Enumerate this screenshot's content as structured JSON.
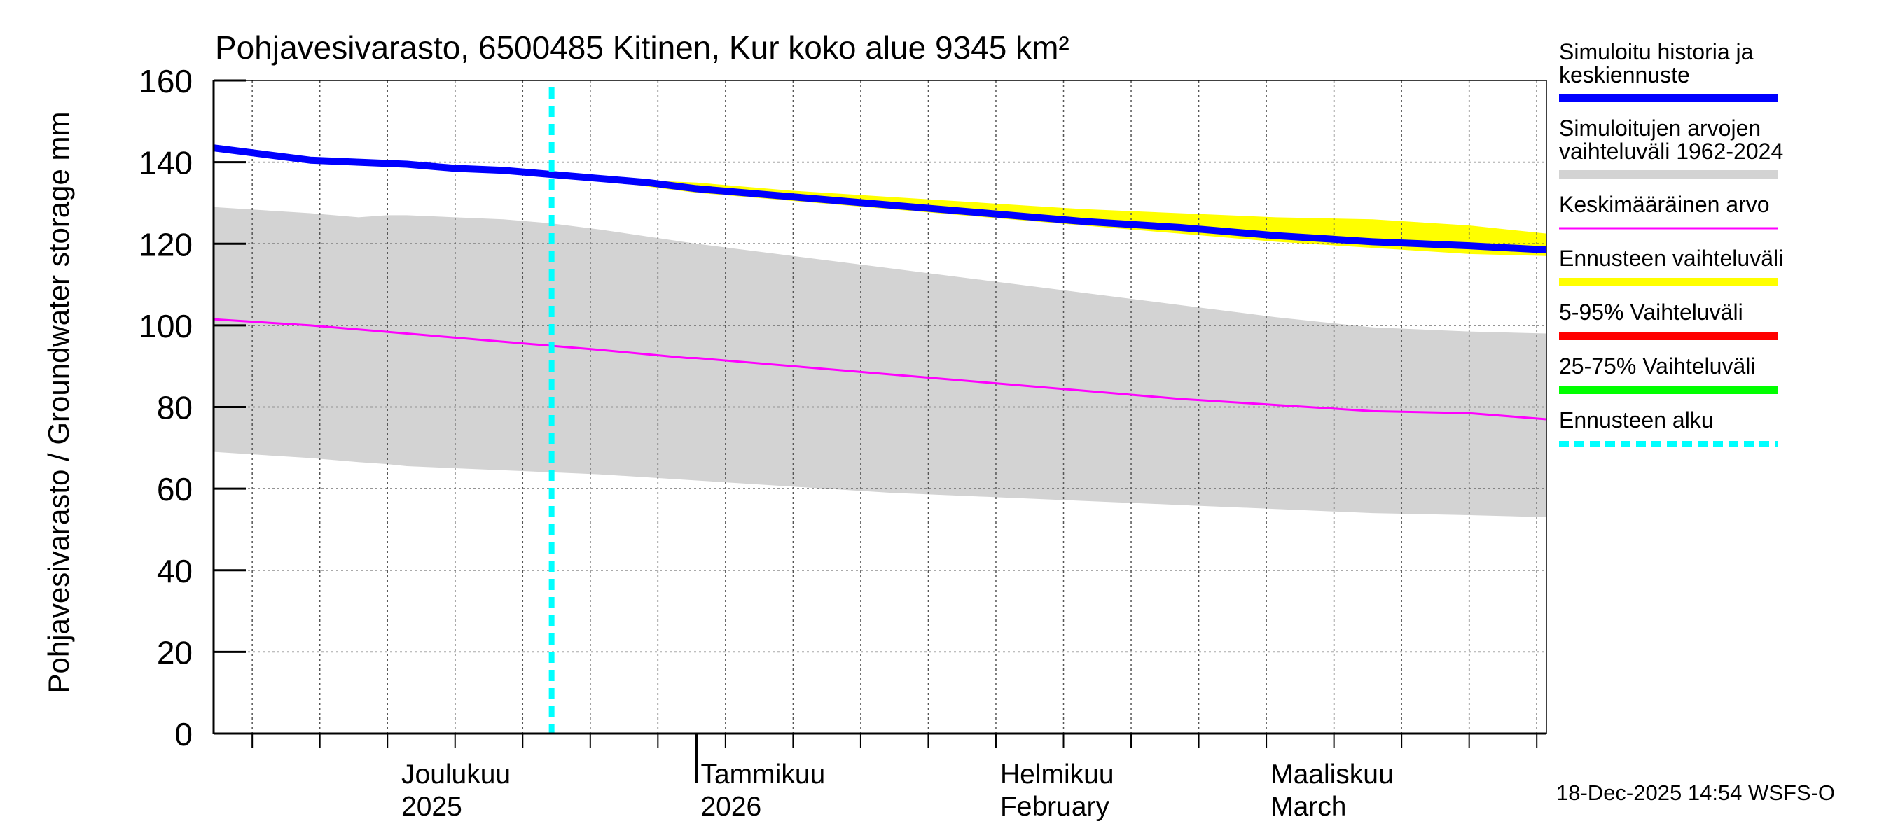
{
  "chart_data": {
    "type": "area",
    "title": "Pohjavesivarasto, 6500485 Kitinen, Kur koko alue 9345 km²",
    "ylabel": "Pohjavesivarasto / Groundwater storage   mm",
    "xlabel": "",
    "ylim": [
      0,
      160
    ],
    "yticks": [
      0,
      20,
      40,
      60,
      80,
      100,
      120,
      140,
      160
    ],
    "x_range_days": [
      0,
      138
    ],
    "x_start_date": "2025-11-12",
    "month_labels": [
      {
        "day": 19,
        "line1": "Joulukuu",
        "line2": "2025"
      },
      {
        "day": 50,
        "line1": "Tammikuu",
        "line2": "2026"
      },
      {
        "day": 81,
        "line1": "Helmikuu",
        "line2": "February"
      },
      {
        "day": 109,
        "line1": "Maaliskuu",
        "line2": "March"
      }
    ],
    "major_ticks_days": [
      50
    ],
    "forecast_start_day": 35,
    "series": [
      {
        "name": "Simuloitujen arvojen vaihteluväli 1962-2024",
        "kind": "band",
        "color": "#d3d3d3",
        "x": [
          0,
          10,
          15,
          18,
          20,
          30,
          35,
          40,
          50,
          60,
          70,
          80,
          90,
          100,
          110,
          120,
          130,
          138
        ],
        "upper": [
          129,
          127.5,
          126.5,
          127,
          127,
          126,
          125,
          123.5,
          120,
          117,
          114,
          111,
          108,
          105,
          102,
          99.5,
          98.5,
          98
        ],
        "lower": [
          69,
          67.5,
          66.5,
          66,
          65.5,
          64.5,
          64,
          63.5,
          62,
          60.5,
          59,
          58,
          57,
          56,
          55,
          54,
          53.5,
          53
        ]
      },
      {
        "name": "Ennusteen vaihteluväli",
        "kind": "band",
        "color": "#ffff00",
        "x": [
          35,
          40,
          45,
          50,
          60,
          70,
          80,
          90,
          100,
          110,
          120,
          130,
          138
        ],
        "upper": [
          137.5,
          136.5,
          135.5,
          135,
          133,
          131.5,
          130,
          128.5,
          127.5,
          126.5,
          126,
          124.5,
          122.5
        ],
        "lower": [
          137,
          135.5,
          134,
          132.5,
          130.5,
          128.5,
          126.5,
          124.5,
          122.5,
          120.5,
          119,
          117.5,
          117
        ]
      },
      {
        "name": "Keskimääräinen arvo",
        "kind": "line",
        "color": "#ff00ff",
        "width": 3,
        "x": [
          0,
          10,
          20,
          30,
          40,
          49,
          50,
          60,
          70,
          80,
          90,
          100,
          110,
          120,
          130,
          138
        ],
        "values": [
          101.5,
          100,
          98,
          96,
          94,
          92,
          92,
          90,
          88,
          86,
          84,
          82,
          80.5,
          79,
          78.5,
          77
        ]
      },
      {
        "name": "Simuloitu historia ja keskiennuste",
        "kind": "line",
        "color": "#0000ff",
        "width": 10,
        "x": [
          0,
          5,
          10,
          15,
          20,
          25,
          30,
          35,
          40,
          45,
          50,
          60,
          70,
          80,
          90,
          100,
          110,
          120,
          130,
          138
        ],
        "values": [
          143.5,
          142,
          140.5,
          140,
          139.5,
          138.5,
          138,
          137,
          136,
          135,
          133.5,
          131.5,
          129.5,
          127.5,
          125.5,
          124,
          122,
          120.5,
          119.5,
          118.5
        ]
      },
      {
        "name": "Ennusteen alku",
        "kind": "vline",
        "color": "#00ffff",
        "width": 8,
        "x": 35
      }
    ],
    "legend": {
      "placement": "right",
      "items": [
        {
          "label1": "Simuloitu historia ja",
          "label2": "keskiennuste",
          "color": "#0000ff",
          "style": "solid"
        },
        {
          "label1": "Simuloitujen arvojen",
          "label2": "vaihteluväli 1962-2024",
          "color": "#d3d3d3",
          "style": "solid"
        },
        {
          "label1": "Keskimääräinen arvo",
          "label2": "",
          "color": "#ff00ff",
          "style": "thin"
        },
        {
          "label1": "Ennusteen vaihteluväli",
          "label2": "",
          "color": "#ffff00",
          "style": "solid"
        },
        {
          "label1": "5-95% Vaihteluväli",
          "label2": "",
          "color": "#ff0000",
          "style": "solid"
        },
        {
          "label1": "25-75% Vaihteluväli",
          "label2": "",
          "color": "#00ff00",
          "style": "solid"
        },
        {
          "label1": "Ennusteen alku",
          "label2": "",
          "color": "#00ffff",
          "style": "dashed"
        }
      ]
    },
    "footer": "18-Dec-2025 14:54 WSFS-O"
  }
}
